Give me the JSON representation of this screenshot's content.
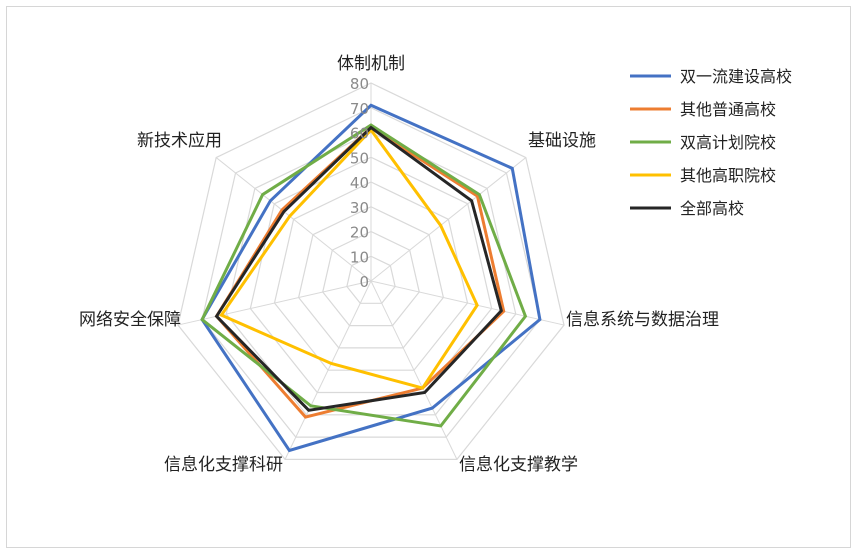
{
  "chart_data": {
    "type": "radar",
    "axes": [
      "体制机制",
      "基础设施",
      "信息系统与数据治理",
      "信息化支撑教学",
      "信息化支撑科研",
      "网络安全保障",
      "新技术应用"
    ],
    "ticks": [
      "0",
      "10",
      "20",
      "30",
      "40",
      "50",
      "60",
      "70",
      "80"
    ],
    "rlim": [
      0,
      80
    ],
    "grid": true,
    "legend_position": "right",
    "series": [
      {
        "name": "双一流建设高校",
        "color": "#4472C4",
        "values": [
          71,
          73,
          70,
          57,
          76,
          70,
          52
        ]
      },
      {
        "name": "其他普通高校",
        "color": "#ED7D31",
        "values": [
          62,
          55,
          55,
          48,
          61,
          64,
          46
        ]
      },
      {
        "name": "双高计划院校",
        "color": "#70AD47",
        "values": [
          63,
          56,
          64,
          65,
          56,
          70,
          56
        ]
      },
      {
        "name": "其他高职院校",
        "color": "#FFC000",
        "values": [
          61,
          36,
          44,
          48,
          37,
          62,
          42
        ]
      },
      {
        "name": "全部高校",
        "color": "#262626",
        "values": [
          62,
          52,
          54,
          50,
          58,
          64,
          45
        ]
      }
    ]
  }
}
